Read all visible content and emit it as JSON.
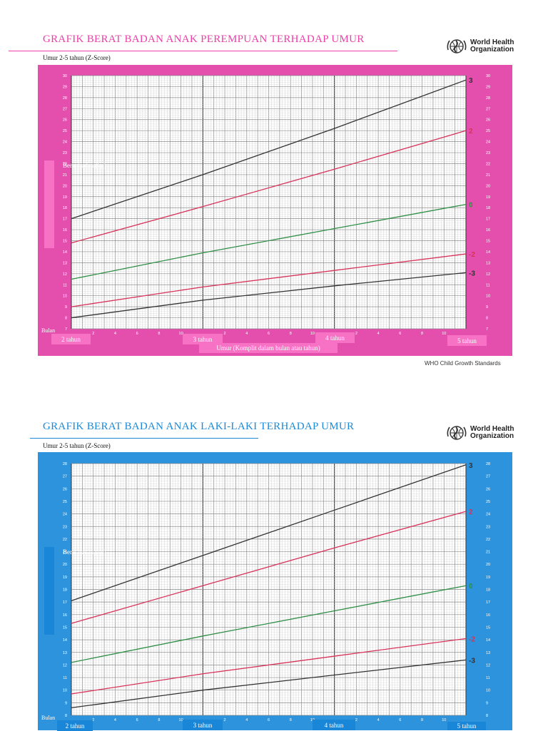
{
  "colors": {
    "girl_accent": "#ec3fa8",
    "girl_frame": "#e44fae",
    "girl_box": "#f772c5",
    "boy_accent": "#1c8ad8",
    "boy_frame": "#2c93dc",
    "boy_box": "#1a86d8",
    "line_black": "#333333",
    "line_red": "#d8325a",
    "line_green": "#2f8f46"
  },
  "icons": {
    "who_logo": "who-emblem-icon"
  },
  "girls": {
    "title": "GRAFIK BERAT BADAN ANAK PEREMPUAN TERHADAP UMUR",
    "subtitle": "Umur 2-5 tahun (Z-Score)",
    "org": [
      "World Health",
      "Organization"
    ],
    "y_label": "Berat badan (kg)",
    "bulan": "Bulan",
    "years": [
      "2  tahun",
      "3  tahun",
      "4  tahun",
      "5  tahun"
    ],
    "x_title": "Umur (Komplit dalam bulan atau tahun)",
    "credit": "WHO Child Growth Standards"
  },
  "boys": {
    "title": "GRAFIK BERAT BADAN ANAK LAKI-LAKI TERHADAP UMUR",
    "subtitle": "Umur 2-5 tahun (Z-Score)",
    "org": [
      "World Health",
      "Organization"
    ],
    "y_label": "Berat badan (kg)",
    "bulan": "Bulan",
    "years": [
      "2  tahun",
      "3  tahun",
      "4  tahun",
      "5  tahun"
    ]
  },
  "chart_data": [
    {
      "type": "line",
      "title": "GRAFIK BERAT BADAN ANAK PEREMPUAN TERHADAP UMUR",
      "subtitle": "Umur 2-5 tahun (Z-Score)",
      "xlabel": "Umur (Komplit dalam bulan atau tahun)",
      "ylabel": "Berat badan (kg)",
      "xlim": [
        24,
        60
      ],
      "ylim": [
        7,
        30
      ],
      "x": [
        24,
        36,
        48,
        60
      ],
      "x_tick_labels": [
        "",
        "2",
        "4",
        "6",
        "8",
        "10",
        "",
        "2",
        "4",
        "6",
        "8",
        "10",
        "",
        "2",
        "4",
        "6",
        "8",
        "10",
        ""
      ],
      "grid": true,
      "series": [
        {
          "name": "3",
          "color": "#333333",
          "values": [
            17.0,
            21.0,
            25.2,
            29.6
          ]
        },
        {
          "name": "2",
          "color": "#d8325a",
          "values": [
            14.8,
            18.1,
            21.5,
            25.0
          ]
        },
        {
          "name": "0",
          "color": "#2f8f46",
          "values": [
            11.5,
            13.9,
            16.1,
            18.3
          ]
        },
        {
          "name": "-2",
          "color": "#d8325a",
          "values": [
            9.0,
            10.8,
            12.3,
            13.8
          ]
        },
        {
          "name": "-3",
          "color": "#333333",
          "values": [
            8.0,
            9.6,
            10.9,
            12.1
          ]
        }
      ]
    },
    {
      "type": "line",
      "title": "GRAFIK BERAT BADAN ANAK LAKI-LAKI TERHADAP UMUR",
      "subtitle": "Umur 2-5 tahun (Z-Score)",
      "ylabel": "Berat badan (kg)",
      "xlim": [
        24,
        60
      ],
      "ylim": [
        8,
        28
      ],
      "x": [
        24,
        36,
        48,
        60
      ],
      "x_tick_labels": [
        "",
        "2",
        "4",
        "6",
        "8",
        "10",
        "",
        "2",
        "4",
        "6",
        "8",
        "10",
        "",
        "2",
        "4",
        "6",
        "8",
        "10",
        ""
      ],
      "grid": true,
      "series": [
        {
          "name": "3",
          "color": "#333333",
          "values": [
            17.1,
            20.7,
            24.3,
            27.9
          ]
        },
        {
          "name": "2",
          "color": "#d8325a",
          "values": [
            15.3,
            18.3,
            21.3,
            24.2
          ]
        },
        {
          "name": "0",
          "color": "#2f8f46",
          "values": [
            12.2,
            14.3,
            16.3,
            18.3
          ]
        },
        {
          "name": "-2",
          "color": "#d8325a",
          "values": [
            9.7,
            11.3,
            12.7,
            14.1
          ]
        },
        {
          "name": "-3",
          "color": "#333333",
          "values": [
            8.6,
            10.0,
            11.2,
            12.4
          ]
        }
      ]
    }
  ]
}
